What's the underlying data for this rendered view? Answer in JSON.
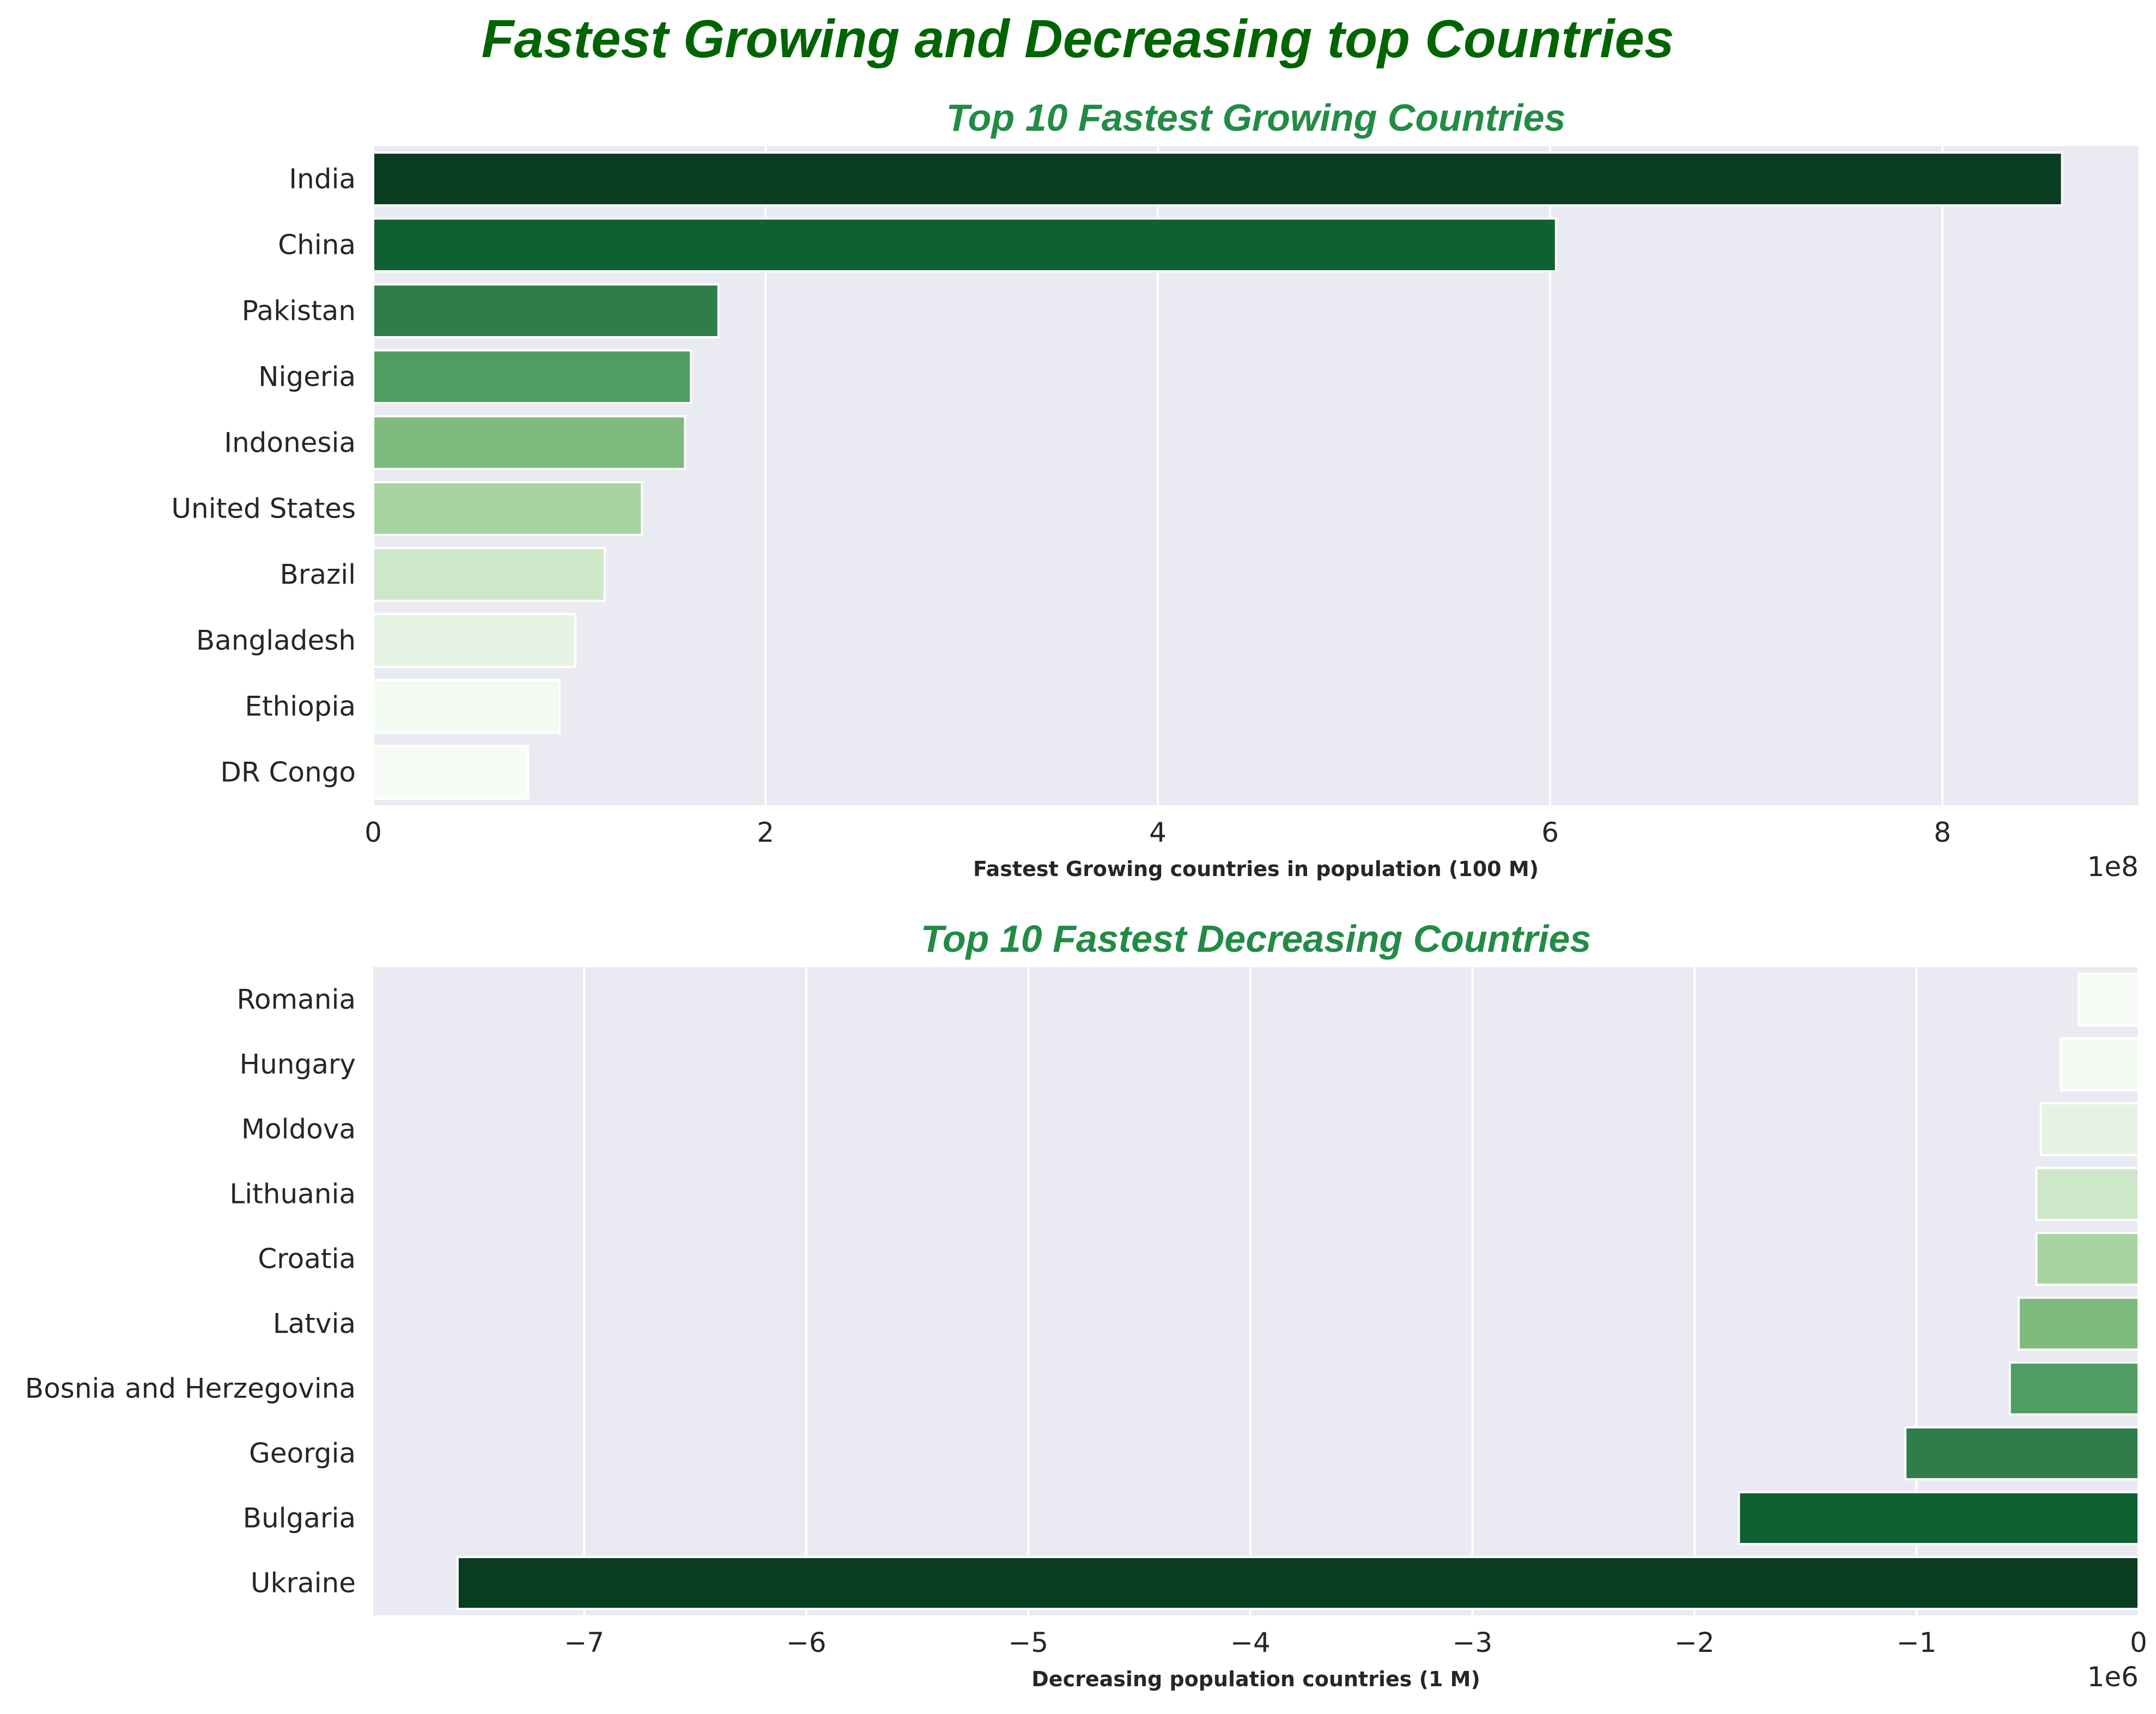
{
  "suptitle": "Fastest Growing and Decreasing top Countries",
  "chart_data": [
    {
      "type": "bar",
      "orientation": "horizontal",
      "title": "Top 10 Fastest Growing Countries",
      "xlabel": "Fastest Growing countries in population (100 M)",
      "ylabel": "",
      "x_offset_label": "1e8",
      "xlim": [
        0,
        900000000.0
      ],
      "xticks": [
        0,
        200000000.0,
        400000000.0,
        600000000.0,
        800000000.0
      ],
      "xtick_labels": [
        "0",
        "2",
        "4",
        "6",
        "8"
      ],
      "grid": true,
      "categories": [
        "India",
        "China",
        "Pakistan",
        "Nigeria",
        "Indonesia",
        "United States",
        "Brazil",
        "Bangladesh",
        "Ethiopia",
        "DR Congo"
      ],
      "values": [
        861000000,
        603000000,
        176000000,
        162000000,
        159000000,
        137000000,
        118000000,
        103000000,
        95000000,
        79000000
      ],
      "colors": [
        "#0a3c1f",
        "#0f6131",
        "#2e7d4a",
        "#4f9d62",
        "#7fbb7e",
        "#a8d4a1",
        "#cde8c8",
        "#e5f4e2",
        "#f3faf1",
        "#f8fcf7"
      ]
    },
    {
      "type": "bar",
      "orientation": "horizontal",
      "title": "Top 10 Fastest Decreasing Countries",
      "xlabel": "Decreasing population countries (1 M)",
      "ylabel": "",
      "x_offset_label": "1e6",
      "xlim": [
        -7950000.0,
        0
      ],
      "xticks": [
        -7000000.0,
        -6000000.0,
        -5000000.0,
        -4000000.0,
        -3000000.0,
        -2000000.0,
        -1000000.0,
        0
      ],
      "xtick_labels": [
        "−7",
        "−6",
        "−5",
        "−4",
        "−3",
        "−2",
        "−1",
        "0"
      ],
      "grid": true,
      "categories": [
        "Romania",
        "Hungary",
        "Moldova",
        "Lithuania",
        "Croatia",
        "Latvia",
        "Bosnia and Herzegovina",
        "Georgia",
        "Bulgaria",
        "Ukraine"
      ],
      "values": [
        -270000,
        -350000,
        -440000,
        -460000,
        -460000,
        -540000,
        -580000,
        -1050000,
        -1800000,
        -7570000
      ],
      "colors": [
        "#f8fcf7",
        "#f3faf1",
        "#e5f4e2",
        "#cde8c8",
        "#a8d4a1",
        "#7fbb7e",
        "#4f9d62",
        "#2e7d4a",
        "#0f6131",
        "#0a3c1f"
      ]
    }
  ]
}
